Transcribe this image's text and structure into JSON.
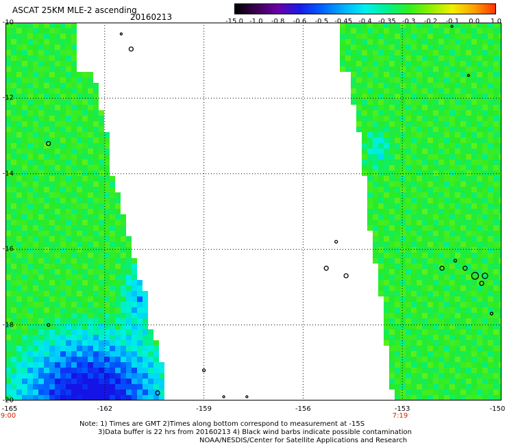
{
  "header": {
    "title": "ASCAT 25KM MLE-2 ascending",
    "date": "20160213"
  },
  "colorbar": {
    "tick_labels": [
      "-15.0",
      "-1.0",
      "-0.8",
      "-0.6",
      "-0.5",
      "-0.45",
      "-0.4",
      "-0.35",
      "-0.3",
      "-0.2",
      "-0.1",
      "0.0",
      "1.0"
    ],
    "colors": [
      "#000000",
      "#3a0050",
      "#6a00a8",
      "#1a1ae6",
      "#0060ff",
      "#00b0ff",
      "#00f0f0",
      "#00f090",
      "#30f020",
      "#90f000",
      "#f0f000",
      "#ffa000",
      "#ff3000"
    ]
  },
  "axes": {
    "y_labels": [
      "-10",
      "-12",
      "-14",
      "-16",
      "-18",
      "-20"
    ],
    "x_labels": [
      "-165",
      "-162",
      "-159",
      "-156",
      "-153",
      "-150"
    ],
    "time_labels": [
      "9:00",
      "7:19"
    ]
  },
  "map": {
    "lat_range": [
      -20,
      -10
    ],
    "lon_range": [
      -165,
      -150
    ],
    "grid": true
  },
  "notes": [
    "Note: 1) Times are GMT 2)Times along bottom correspond to measurement at -15S",
    "3)Data buffer is 22 hrs from 20160213 4) Black wind barbs indicate possible contamination",
    "NOAA/NESDIS/Center for Satellite Applications and Research"
  ]
}
